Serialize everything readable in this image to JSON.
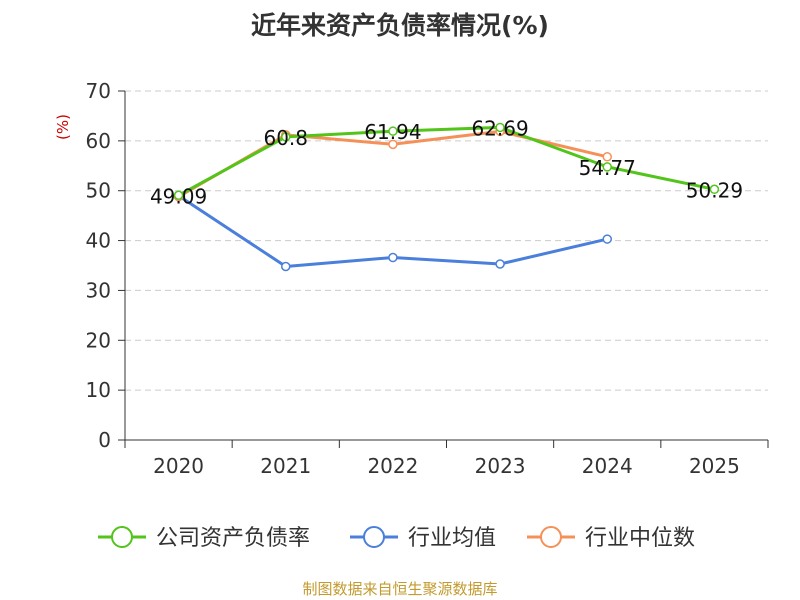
{
  "chart_data": {
    "type": "line",
    "title": "近年来资产负债率情况(%)",
    "ylabel": "(%)",
    "xlabel": "",
    "categories": [
      "2020",
      "2021",
      "2022",
      "2023",
      "2024",
      "2025"
    ],
    "ylim": [
      0,
      70
    ],
    "yticks": [
      0,
      10,
      20,
      30,
      40,
      50,
      60,
      70
    ],
    "grid": true,
    "legend_position": "bottom",
    "series": [
      {
        "name": "公司资产负债率",
        "color": "#52c41a",
        "values": [
          49.09,
          60.8,
          61.94,
          62.69,
          54.77,
          50.29
        ],
        "data_labels": [
          "49.09",
          "60.8",
          "61.94",
          "62.69",
          "54.77",
          "50.29"
        ]
      },
      {
        "name": "行业均值",
        "color": "#4a7fdb",
        "values": [
          49.0,
          34.8,
          36.6,
          35.3,
          40.3,
          null
        ],
        "data_labels": []
      },
      {
        "name": "行业中位数",
        "color": "#f59158",
        "values": [
          48.8,
          61.2,
          59.3,
          61.9,
          56.8,
          null
        ],
        "data_labels": []
      }
    ],
    "source": "制图数据来自恒生聚源数据库"
  }
}
